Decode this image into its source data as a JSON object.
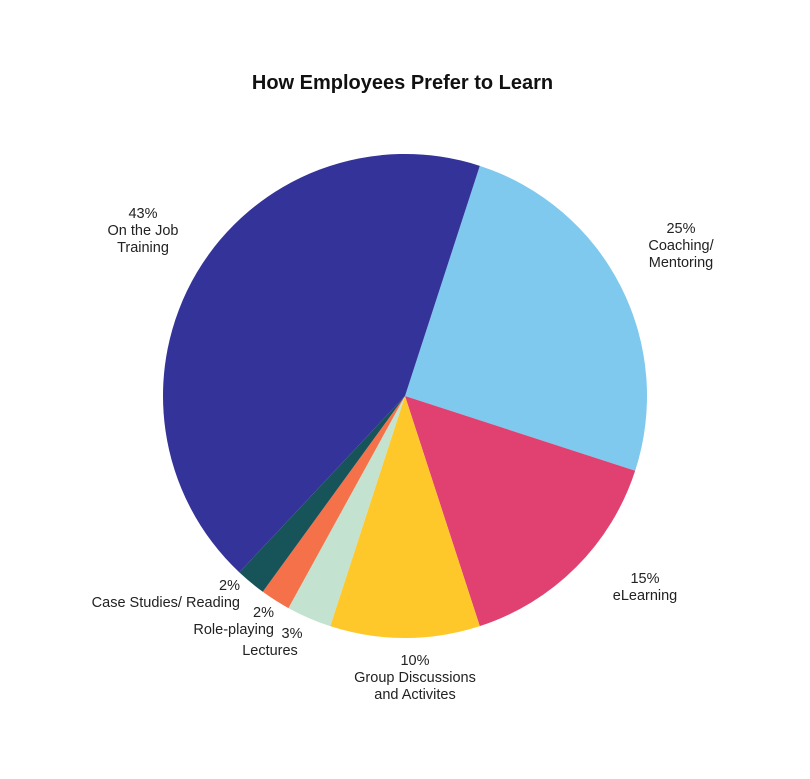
{
  "chart_data": {
    "type": "pie",
    "title": "How Employees Prefer to Learn",
    "slices": [
      {
        "label_lines": [
          "On the Job",
          "Training"
        ],
        "value": 43,
        "value_text": "43%",
        "color": "#343399"
      },
      {
        "label_lines": [
          "Coaching/",
          "Mentoring"
        ],
        "value": 25,
        "value_text": "25%",
        "color": "#7fc8ee"
      },
      {
        "label_lines": [
          "eLearning"
        ],
        "value": 15,
        "value_text": "15%",
        "color": "#e04170"
      },
      {
        "label_lines": [
          "Group Discussions",
          "and Activites"
        ],
        "value": 10,
        "value_text": "10%",
        "color": "#fec82a"
      },
      {
        "label_lines": [
          "Lectures"
        ],
        "value": 3,
        "value_text": "3%",
        "color": "#c3e3d0"
      },
      {
        "label_lines": [
          "Role-playing"
        ],
        "value": 2,
        "value_text": "2%",
        "color": "#f4714a"
      },
      {
        "label_lines": [
          "Case Studies/ Reading"
        ],
        "value": 2,
        "value_text": "2%",
        "color": "#17545a"
      }
    ]
  }
}
